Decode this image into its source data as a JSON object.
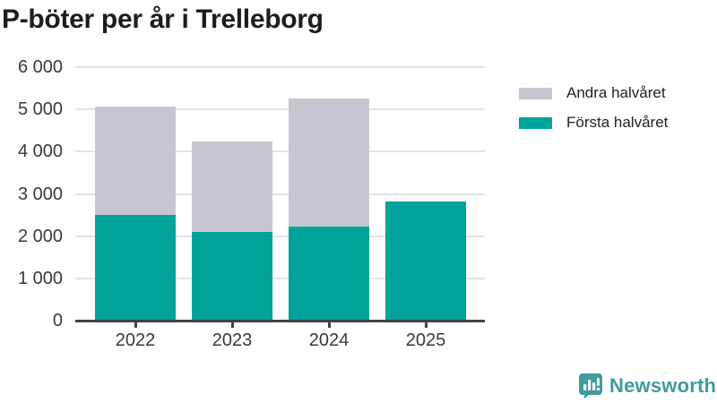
{
  "title": "P-böter per år i Trelleborg",
  "chart_data": {
    "type": "bar",
    "stacked": true,
    "title": "P-böter per år i Trelleborg",
    "categories": [
      "2022",
      "2023",
      "2024",
      "2025"
    ],
    "series": [
      {
        "name": "Första halvåret",
        "color": "#00a29a",
        "values": [
          2500,
          2100,
          2230,
          2830
        ]
      },
      {
        "name": "Andra halvåret",
        "color": "#c7c5cf",
        "values": [
          2570,
          2130,
          3020,
          0
        ]
      }
    ],
    "totals": [
      5070,
      4230,
      5250,
      2830
    ],
    "xlabel": "",
    "ylabel": "",
    "ylim": [
      0,
      6000
    ],
    "ytick_values": [
      0,
      1000,
      2000,
      3000,
      4000,
      5000,
      6000
    ],
    "ytick_labels": [
      "0",
      "1 000",
      "2 000",
      "3 000",
      "4 000",
      "5 000",
      "6 000"
    ],
    "grid": true,
    "legend_position": "right"
  },
  "legend": {
    "items": [
      {
        "label": "Andra halvåret",
        "color": "#c7c5cf"
      },
      {
        "label": "Första halvåret",
        "color": "#00a29a"
      }
    ]
  },
  "branding": {
    "name": "Newsworthy",
    "color": "#3f9c9a",
    "icon": "bar-chart-speech-bubble-icon"
  },
  "colors": {
    "first_half": "#00a29a",
    "second_half": "#c7c5cf",
    "gridline": "#e4e3e6",
    "axis": "#424242",
    "tick_text": "#3a3a3a",
    "title_text": "#1d1d1b"
  }
}
